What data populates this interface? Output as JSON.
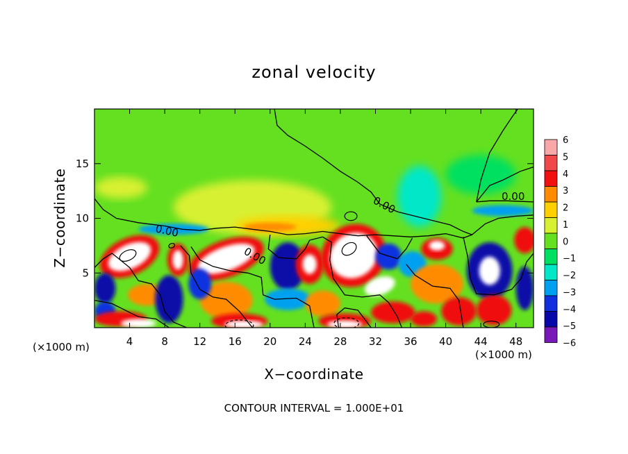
{
  "chart_data": {
    "type": "heatmap",
    "title": "zonal velocity",
    "xlabel": "X−coordinate",
    "ylabel": "Z−coordinate",
    "x_unit_left": "(×1000 m)",
    "x_unit_right": "(×1000 m)",
    "xlim": [
      0,
      50
    ],
    "ylim": [
      0,
      20
    ],
    "xticks": [
      4,
      8,
      12,
      16,
      20,
      24,
      28,
      32,
      36,
      40,
      44,
      48
    ],
    "yticks": [
      5,
      10,
      15
    ],
    "colorbar": {
      "levels": [
        6,
        5,
        4,
        3,
        2,
        1,
        0,
        -1,
        -2,
        -3,
        -4,
        -5,
        -6
      ],
      "labels": [
        "6",
        "5",
        "4",
        "3",
        "2",
        "1",
        "0",
        "−1",
        "−2",
        "−3",
        "−4",
        "−5",
        "−6"
      ],
      "colors": [
        "#f8a8a8",
        "#f04848",
        "#f01010",
        "#ff8c00",
        "#ffd000",
        "#d8f030",
        "#64e020",
        "#00e060",
        "#00e8c8",
        "#00a0f0",
        "#1030e0",
        "#0808a8",
        "#7818b8"
      ]
    },
    "contour_labels": [
      "0.00",
      "0.00",
      "0.00",
      "0.00"
    ],
    "contour_interval_text": "CONTOUR INTERVAL = 1.000E+01",
    "colors": {
      "background_field": "#64e020",
      "saturated_positive": "#ffffff",
      "contour_line": "#000000"
    }
  }
}
